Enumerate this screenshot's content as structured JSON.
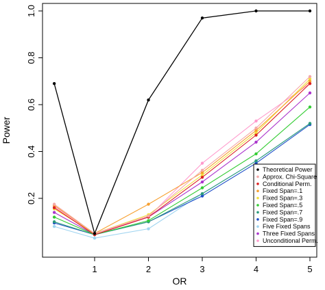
{
  "chart_data": {
    "type": "line",
    "xlabel": "OR",
    "ylabel": "Power",
    "x": [
      0.25,
      1,
      2,
      3,
      4,
      5
    ],
    "xticks": [
      1,
      2,
      3,
      4,
      5
    ],
    "yticks": [
      0.2,
      0.4,
      0.6,
      0.8,
      1.0
    ],
    "ytick_labels": [
      "0.2",
      "0.4",
      "0.6",
      "0.8",
      "1.0"
    ],
    "xlim": [
      0.05,
      5.25
    ],
    "ylim": [
      0.0,
      1.02
    ],
    "legend_position": "bottom-right",
    "series": [
      {
        "name": "Theoretical Power",
        "color": "#000000",
        "values": [
          0.69,
          0.05,
          0.62,
          0.97,
          1.0,
          1.0
        ]
      },
      {
        "name": "Approx. Chi-Square",
        "color": "#f4a8a8",
        "values": [
          0.175,
          0.05,
          0.125,
          0.32,
          0.5,
          0.72
        ]
      },
      {
        "name": "Conditional Perm.",
        "color": "#dd2222",
        "values": [
          0.16,
          0.045,
          0.12,
          0.29,
          0.47,
          0.69
        ]
      },
      {
        "name": "Fixed Span=.1",
        "color": "#f7a030",
        "values": [
          0.17,
          0.05,
          0.175,
          0.31,
          0.49,
          0.7
        ]
      },
      {
        "name": "Fixed Span=.3",
        "color": "#f2e040",
        "values": [
          0.155,
          0.05,
          0.13,
          0.3,
          0.48,
          0.71
        ]
      },
      {
        "name": "Fixed Span=.5",
        "color": "#33cc33",
        "values": [
          0.12,
          0.045,
          0.105,
          0.245,
          0.39,
          0.59
        ]
      },
      {
        "name": "Fixed Span=.7",
        "color": "#2a9a7a",
        "values": [
          0.1,
          0.045,
          0.1,
          0.22,
          0.36,
          0.52
        ]
      },
      {
        "name": "Fixed Span=.9",
        "color": "#1f4fc8",
        "values": [
          0.095,
          0.045,
          0.1,
          0.21,
          0.35,
          0.515
        ]
      },
      {
        "name": "Five Fixed Spans",
        "color": "#9fd4f0",
        "values": [
          0.08,
          0.03,
          0.07,
          0.22,
          0.36,
          0.52
        ]
      },
      {
        "name": "Three Fixed Spans",
        "color": "#aa33cc",
        "values": [
          0.14,
          0.045,
          0.12,
          0.27,
          0.44,
          0.65
        ]
      },
      {
        "name": "Unconditional Perm.",
        "color": "#ff99cc",
        "values": [
          0.165,
          0.05,
          0.12,
          0.35,
          0.53,
          0.69
        ]
      }
    ]
  }
}
